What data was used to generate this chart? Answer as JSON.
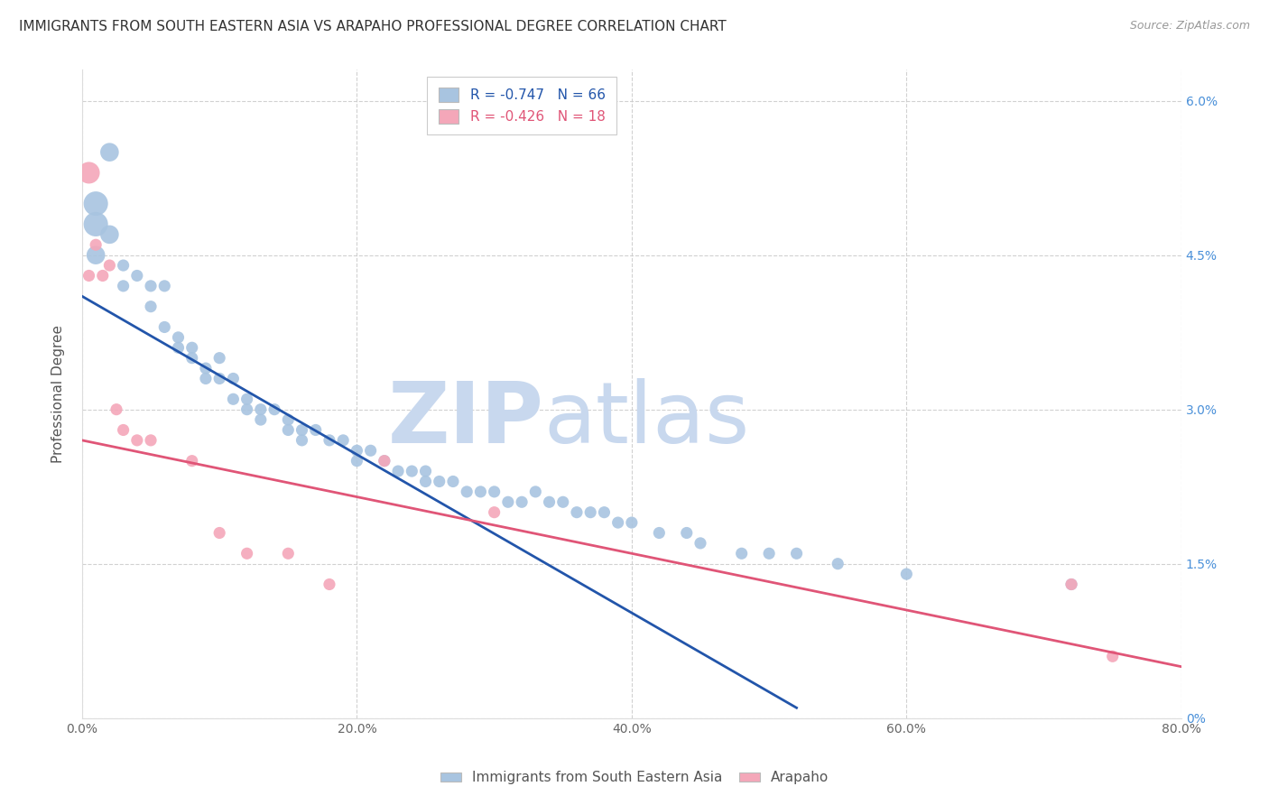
{
  "title": "IMMIGRANTS FROM SOUTH EASTERN ASIA VS ARAPAHO PROFESSIONAL DEGREE CORRELATION CHART",
  "source": "Source: ZipAtlas.com",
  "ylabel": "Professional Degree",
  "xlabel_ticks": [
    "0.0%",
    "20.0%",
    "40.0%",
    "60.0%",
    "80.0%"
  ],
  "ylabel_ticks_right": [
    "0%",
    "1.5%",
    "3.0%",
    "4.5%",
    "6.0%"
  ],
  "xlim": [
    0.0,
    0.8
  ],
  "ylim": [
    0.0,
    0.063
  ],
  "blue_R": -0.747,
  "blue_N": 66,
  "pink_R": -0.426,
  "pink_N": 18,
  "blue_color": "#a8c4e0",
  "pink_color": "#f4a7b9",
  "blue_line_color": "#2255aa",
  "pink_line_color": "#e05577",
  "watermark_zip": "ZIP",
  "watermark_atlas": "atlas",
  "watermark_color": "#c8d8ee",
  "legend_label_blue": "Immigrants from South Eastern Asia",
  "legend_label_pink": "Arapaho",
  "blue_scatter_x": [
    0.02,
    0.01,
    0.01,
    0.02,
    0.01,
    0.03,
    0.04,
    0.03,
    0.05,
    0.06,
    0.05,
    0.06,
    0.07,
    0.07,
    0.08,
    0.08,
    0.09,
    0.09,
    0.1,
    0.1,
    0.11,
    0.11,
    0.12,
    0.12,
    0.13,
    0.13,
    0.14,
    0.15,
    0.15,
    0.16,
    0.16,
    0.17,
    0.18,
    0.19,
    0.2,
    0.2,
    0.21,
    0.22,
    0.23,
    0.24,
    0.25,
    0.25,
    0.26,
    0.27,
    0.28,
    0.29,
    0.3,
    0.31,
    0.32,
    0.33,
    0.34,
    0.35,
    0.36,
    0.37,
    0.38,
    0.39,
    0.4,
    0.42,
    0.44,
    0.45,
    0.48,
    0.5,
    0.52,
    0.55,
    0.6,
    0.72
  ],
  "blue_scatter_y": [
    0.055,
    0.05,
    0.048,
    0.047,
    0.045,
    0.044,
    0.043,
    0.042,
    0.042,
    0.042,
    0.04,
    0.038,
    0.037,
    0.036,
    0.036,
    0.035,
    0.034,
    0.033,
    0.035,
    0.033,
    0.033,
    0.031,
    0.031,
    0.03,
    0.03,
    0.029,
    0.03,
    0.029,
    0.028,
    0.028,
    0.027,
    0.028,
    0.027,
    0.027,
    0.026,
    0.025,
    0.026,
    0.025,
    0.024,
    0.024,
    0.024,
    0.023,
    0.023,
    0.023,
    0.022,
    0.022,
    0.022,
    0.021,
    0.021,
    0.022,
    0.021,
    0.021,
    0.02,
    0.02,
    0.02,
    0.019,
    0.019,
    0.018,
    0.018,
    0.017,
    0.016,
    0.016,
    0.016,
    0.015,
    0.014,
    0.013
  ],
  "pink_scatter_x": [
    0.005,
    0.01,
    0.005,
    0.02,
    0.015,
    0.025,
    0.03,
    0.04,
    0.05,
    0.08,
    0.1,
    0.12,
    0.15,
    0.18,
    0.22,
    0.3,
    0.72,
    0.75
  ],
  "pink_scatter_y": [
    0.053,
    0.046,
    0.043,
    0.044,
    0.043,
    0.03,
    0.028,
    0.027,
    0.027,
    0.025,
    0.018,
    0.016,
    0.016,
    0.013,
    0.025,
    0.02,
    0.013,
    0.006
  ],
  "blue_line_x0": 0.0,
  "blue_line_y0": 0.041,
  "blue_line_x1": 0.52,
  "blue_line_y1": 0.001,
  "pink_line_x0": 0.0,
  "pink_line_y0": 0.027,
  "pink_line_x1": 0.8,
  "pink_line_y1": 0.005,
  "title_fontsize": 11,
  "source_fontsize": 9,
  "scatter_size": 90,
  "big_scatter_sizes": [
    400,
    300,
    280,
    260,
    250
  ]
}
